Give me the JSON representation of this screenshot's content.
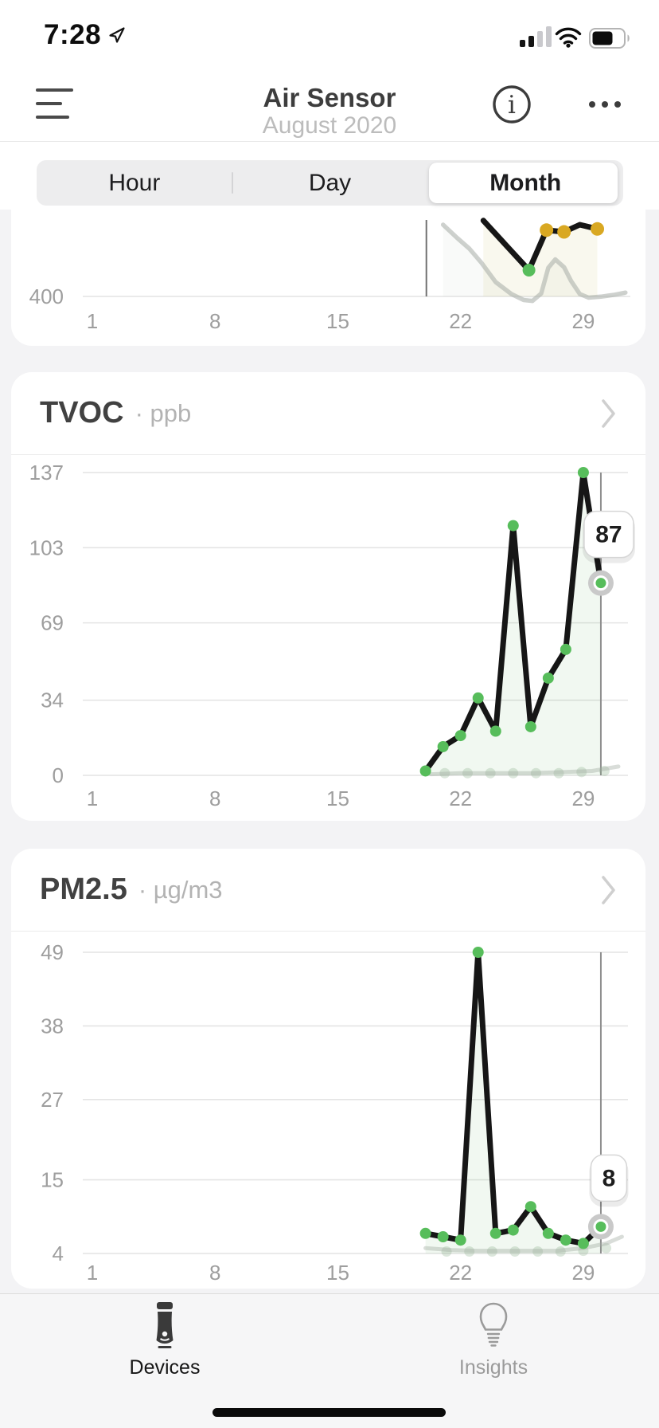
{
  "status_bar": {
    "time": "7:28"
  },
  "header": {
    "title": "Air Sensor",
    "subtitle": "August 2020"
  },
  "segmented_control": {
    "options": [
      "Hour",
      "Day",
      "Month"
    ],
    "selected": "Month"
  },
  "colors": {
    "accent_green": "#57bd5b",
    "accent_yellow": "#d9a822",
    "line_black": "#161616",
    "grid": "#e4e4e4",
    "axis_label": "#9e9e9e"
  },
  "chart_data": [
    {
      "id": "co2-partial",
      "type": "line",
      "title": "",
      "unit": "",
      "ylim": [
        400,
        1027
      ],
      "xlim": [
        1,
        31.5
      ],
      "y_ticks": [
        {
          "v": 400,
          "label": "400"
        }
      ],
      "x_ticks": [
        {
          "d": 1,
          "label": "1"
        },
        {
          "d": 8,
          "label": "8"
        },
        {
          "d": 15,
          "label": "15"
        },
        {
          "d": 22,
          "label": "22"
        },
        {
          "d": 29,
          "label": "29"
        }
      ],
      "series": [
        {
          "name": "previous-period",
          "color": "rgba(165,172,165,0.55)",
          "width": 5.5,
          "fill": true,
          "fill_color": "rgba(150,165,150,0.06)",
          "points": [
            [
              21,
              1000
            ],
            [
              21.8,
              890
            ],
            [
              22.5,
              800
            ],
            [
              23.2,
              680
            ],
            [
              24,
              520
            ],
            [
              24.9,
              420
            ],
            [
              25.6,
              370
            ],
            [
              26.1,
              362
            ],
            [
              26.6,
              425
            ],
            [
              27,
              640
            ],
            [
              27.4,
              710
            ],
            [
              27.9,
              645
            ],
            [
              28.3,
              530
            ],
            [
              28.8,
              420
            ],
            [
              29.3,
              390
            ],
            [
              30,
              398
            ],
            [
              30.8,
              415
            ],
            [
              31.4,
              432
            ]
          ]
        },
        {
          "name": "current",
          "color": "#161616",
          "width": 7,
          "fill": true,
          "fill_color": "rgba(200,185,90,0.10)",
          "points": [
            [
              23.3,
              1035
            ],
            [
              25.9,
              620
            ],
            [
              26.9,
              955
            ],
            [
              27.9,
              940
            ],
            [
              28.8,
              1000
            ],
            [
              29.8,
              965
            ]
          ]
        }
      ],
      "dots": [
        {
          "d": 25.9,
          "v": 620,
          "color": "#57bd5b",
          "r": 8
        },
        {
          "d": 26.9,
          "v": 955,
          "color": "#d9a822",
          "r": 8.5
        },
        {
          "d": 27.9,
          "v": 940,
          "color": "#d9a822",
          "r": 8.5
        },
        {
          "d": 29.8,
          "v": 965,
          "color": "#d9a822",
          "r": 8.5
        }
      ],
      "cursor_day": 20.05
    },
    {
      "id": "tvoc",
      "type": "line",
      "title": "TVOC",
      "unit": "· ppb",
      "ylim": [
        0,
        137
      ],
      "xlim": [
        1,
        31.5
      ],
      "y_ticks": [
        {
          "v": 137,
          "label": "137"
        },
        {
          "v": 103,
          "label": "103"
        },
        {
          "v": 69,
          "label": "69"
        },
        {
          "v": 34,
          "label": "34"
        },
        {
          "v": 0,
          "label": "0"
        }
      ],
      "x_ticks": [
        {
          "d": 1,
          "label": "1"
        },
        {
          "d": 8,
          "label": "8"
        },
        {
          "d": 15,
          "label": "15"
        },
        {
          "d": 22,
          "label": "22"
        },
        {
          "d": 29,
          "label": "29"
        }
      ],
      "series": [
        {
          "name": "previous-period",
          "color": "rgba(160,170,160,0.40)",
          "width": 5,
          "points": [
            [
              20.3,
              0.5
            ],
            [
              22,
              1
            ],
            [
              24,
              1
            ],
            [
              26,
              1
            ],
            [
              28,
              1.5
            ],
            [
              29.5,
              2
            ],
            [
              31,
              4
            ]
          ]
        },
        {
          "name": "current",
          "color": "#161616",
          "width": 7,
          "fill": true,
          "fill_color": "rgba(115,185,115,0.10)",
          "dot_color": "#57bd5b",
          "dot_r": 7,
          "points": [
            [
              20,
              2
            ],
            [
              21,
              13
            ],
            [
              22,
              18
            ],
            [
              23,
              35
            ],
            [
              24,
              20
            ],
            [
              25,
              113
            ],
            [
              26,
              22
            ],
            [
              27,
              44
            ],
            [
              28,
              57
            ],
            [
              29,
              137
            ],
            [
              30,
              87
            ]
          ]
        }
      ],
      "ghost_dots": {
        "color": "rgba(140,175,140,0.30)",
        "r": 6.5,
        "points": [
          [
            21.1,
            1
          ],
          [
            22.4,
            1
          ],
          [
            23.7,
            1
          ],
          [
            25,
            1
          ],
          [
            26.3,
            1
          ],
          [
            27.6,
            1
          ],
          [
            28.9,
            1.5
          ],
          [
            30.2,
            2
          ]
        ]
      },
      "cursor_day": 30,
      "selected": {
        "d": 30,
        "v": 87,
        "label": "87"
      }
    },
    {
      "id": "pm25",
      "type": "line",
      "title": "PM2.5",
      "unit": "· µg/m3",
      "ylim": [
        4,
        49
      ],
      "xlim": [
        1,
        31.5
      ],
      "y_ticks": [
        {
          "v": 49,
          "label": "49"
        },
        {
          "v": 38,
          "label": "38"
        },
        {
          "v": 27,
          "label": "27"
        },
        {
          "v": 15,
          "label": "15"
        },
        {
          "v": 4,
          "label": "4"
        }
      ],
      "x_ticks": [
        {
          "d": 1,
          "label": "1"
        },
        {
          "d": 8,
          "label": "8"
        },
        {
          "d": 15,
          "label": "15"
        },
        {
          "d": 22,
          "label": "22"
        },
        {
          "d": 29,
          "label": "29"
        }
      ],
      "series": [
        {
          "name": "previous-period",
          "color": "rgba(160,170,160,0.40)",
          "width": 5,
          "points": [
            [
              20,
              4.8
            ],
            [
              21.5,
              4.5
            ],
            [
              23,
              4.4
            ],
            [
              24.5,
              4.4
            ],
            [
              26,
              4.4
            ],
            [
              27.5,
              4.4
            ],
            [
              29,
              4.8
            ],
            [
              30.3,
              5.5
            ],
            [
              31.2,
              6.5
            ]
          ]
        },
        {
          "name": "current",
          "color": "#161616",
          "width": 7,
          "fill": true,
          "fill_color": "rgba(115,185,115,0.10)",
          "dot_color": "#57bd5b",
          "dot_r": 7,
          "points": [
            [
              20,
              7
            ],
            [
              21,
              6.5
            ],
            [
              22,
              6
            ],
            [
              23,
              49
            ],
            [
              24,
              7
            ],
            [
              25,
              7.5
            ],
            [
              26,
              11
            ],
            [
              27,
              7
            ],
            [
              28,
              6
            ],
            [
              29,
              5.5
            ],
            [
              30,
              8
            ]
          ]
        }
      ],
      "ghost_dots": {
        "color": "rgba(140,175,140,0.30)",
        "r": 6.5,
        "points": [
          [
            21.2,
            4.3
          ],
          [
            22.5,
            4.3
          ],
          [
            23.8,
            4.3
          ],
          [
            25.1,
            4.3
          ],
          [
            26.4,
            4.3
          ],
          [
            27.7,
            4.3
          ],
          [
            29,
            4.4
          ],
          [
            30.3,
            4.8
          ]
        ]
      },
      "cursor_day": 30,
      "selected": {
        "d": 30,
        "v": 8,
        "label": "8"
      }
    }
  ],
  "tab_bar": {
    "items": [
      {
        "label": "Devices",
        "icon": "device-icon",
        "active": true
      },
      {
        "label": "Insights",
        "icon": "bulb-icon",
        "active": false
      }
    ]
  }
}
